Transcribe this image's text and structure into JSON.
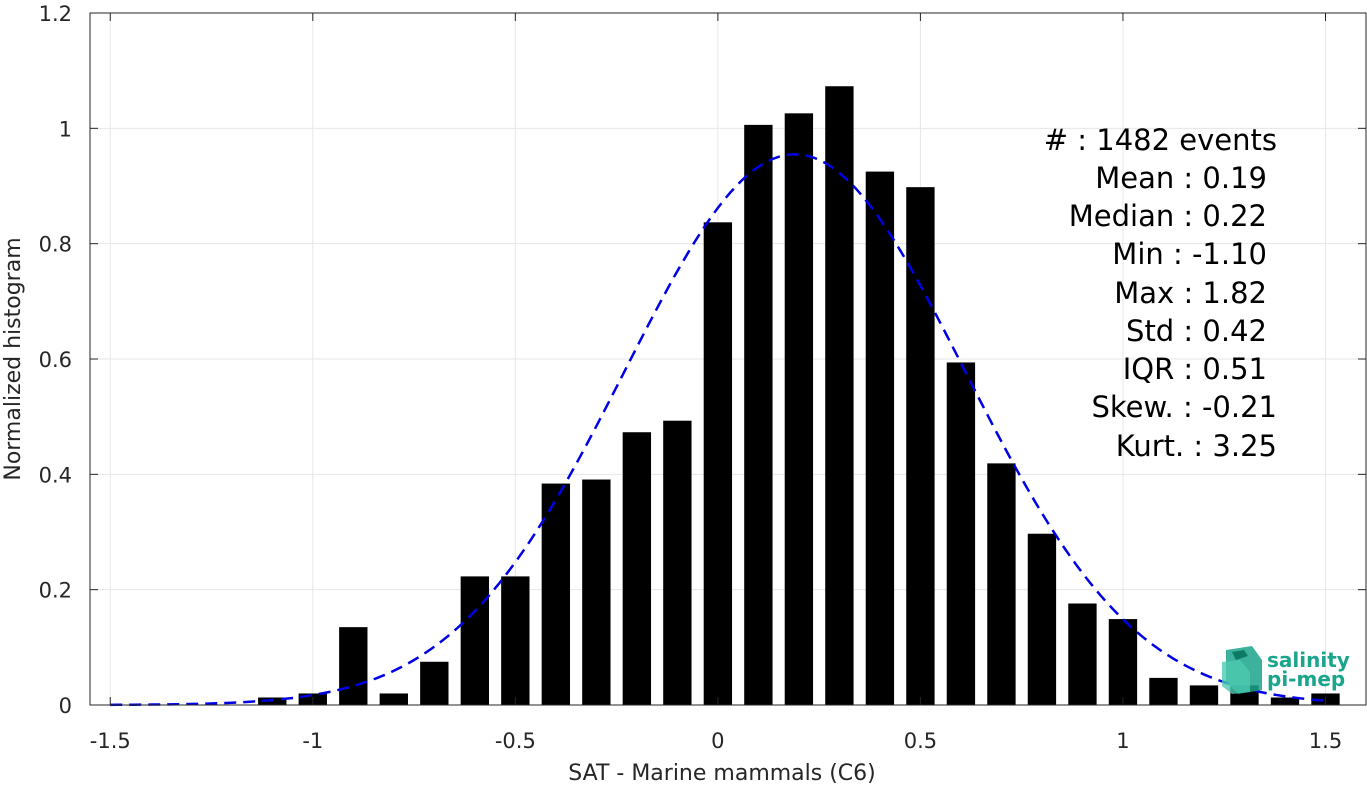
{
  "chart_data": {
    "type": "bar",
    "xlabel": "SAT - Marine mammals (C6)",
    "ylabel": "Normalized histogram",
    "xlim": [
      -1.55,
      1.6
    ],
    "ylim": [
      0,
      1.2
    ],
    "xticks": [
      -1.5,
      -1,
      -0.5,
      0,
      0.5,
      1,
      1.5
    ],
    "xtick_labels": [
      "-1.5",
      "-1",
      "-0.5",
      "0",
      "0.5",
      "1",
      "1.5"
    ],
    "yticks": [
      0,
      0.2,
      0.4,
      0.6,
      0.8,
      1,
      1.2
    ],
    "ytick_labels": [
      "0",
      "0.2",
      "0.4",
      "0.6",
      "0.8",
      "1",
      "1.2"
    ],
    "grid": true,
    "bar_width": 0.07,
    "bar_color": "#000000",
    "bins": [
      -1.1,
      -1.0,
      -0.9,
      -0.8,
      -0.7,
      -0.6,
      -0.5,
      -0.4,
      -0.3,
      -0.2,
      -0.1,
      0.0,
      0.1,
      0.2,
      0.3,
      0.4,
      0.5,
      0.6,
      0.7,
      0.8,
      0.9,
      1.0,
      1.1,
      1.2,
      1.3,
      1.4,
      1.5
    ],
    "values": [
      0.013,
      0.02,
      0.135,
      0.02,
      0.075,
      0.223,
      0.223,
      0.384,
      0.391,
      0.473,
      0.493,
      0.837,
      1.006,
      1.026,
      1.073,
      0.925,
      0.898,
      0.594,
      0.419,
      0.297,
      0.176,
      0.149,
      0.047,
      0.034,
      0.034,
      0.013,
      0.02
    ],
    "fit_curve": {
      "style": "dashed",
      "color": "#0000e6",
      "mean": 0.19,
      "std": 0.42,
      "peak": 0.955,
      "x_range": [
        -1.5,
        1.5
      ]
    },
    "stats": [
      "#  : 1482 events",
      "Mean : 0.19",
      "Median : 0.22",
      "Min : -1.10",
      "Max : 1.82",
      "Std : 0.42",
      "IQR : 0.51",
      "Skew. : -0.21",
      "Kurt. : 3.25"
    ]
  },
  "logo": {
    "line1": "salinity",
    "line2": "pi-mep",
    "color": "#1aa58c"
  }
}
